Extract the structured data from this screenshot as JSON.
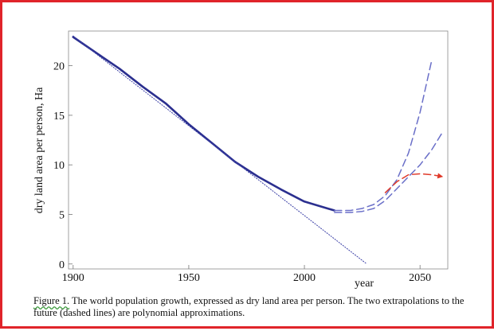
{
  "figure": {
    "caption_number": "Figure 1.",
    "caption_text": " The world population growth, expressed as dry land area per person. The two extrapolations to the future (dashed lines) are polynomial approximations."
  },
  "colors": {
    "frame": "#e0242a",
    "historical": "#2b2f8f",
    "trend": "#3a3fa6",
    "extrapolation": "#6a6fc8",
    "projection": "#e03a2a"
  },
  "chart_data": {
    "type": "line",
    "title": "",
    "xlabel": "year",
    "ylabel": "dry land area per person, Ha",
    "xlim": [
      1898,
      2062
    ],
    "ylim": [
      -0.5,
      23.5
    ],
    "x_ticks": [
      1900,
      1950,
      2000,
      2050
    ],
    "y_ticks": [
      0,
      5,
      10,
      15,
      20
    ],
    "grid": false,
    "legend": "none",
    "series": [
      {
        "style": "solid",
        "color": "#2b2f8f",
        "x": [
          1900,
          1910,
          1920,
          1930,
          1940,
          1950,
          1960,
          1970,
          1980,
          1990,
          2000,
          2010,
          2013
        ],
        "y": [
          22.9,
          21.3,
          19.7,
          17.9,
          16.2,
          14.1,
          12.2,
          10.3,
          8.8,
          7.5,
          6.3,
          5.6,
          5.4
        ]
      },
      {
        "style": "dotted",
        "color": "#3a3fa6",
        "x": [
          1900,
          2027
        ],
        "y": [
          23.0,
          0.0
        ]
      },
      {
        "style": "dashed",
        "color": "#6a6fc8",
        "x": [
          2013,
          2020,
          2025,
          2030,
          2035,
          2040,
          2045,
          2050,
          2055
        ],
        "y": [
          5.4,
          5.4,
          5.6,
          6.0,
          6.9,
          8.5,
          11.2,
          15.3,
          20.5
        ]
      },
      {
        "style": "dashed",
        "color": "#6a6fc8",
        "x": [
          2013,
          2020,
          2025,
          2030,
          2035,
          2040,
          2045,
          2050,
          2055,
          2060
        ],
        "y": [
          5.2,
          5.2,
          5.3,
          5.6,
          6.4,
          7.6,
          8.8,
          10.0,
          11.5,
          13.4
        ]
      },
      {
        "style": "dashed",
        "color": "#e03a2a",
        "x": [
          2035,
          2040,
          2045,
          2050,
          2055,
          2060
        ],
        "y": [
          7.2,
          8.3,
          9.0,
          9.1,
          9.0,
          8.8
        ]
      }
    ]
  }
}
